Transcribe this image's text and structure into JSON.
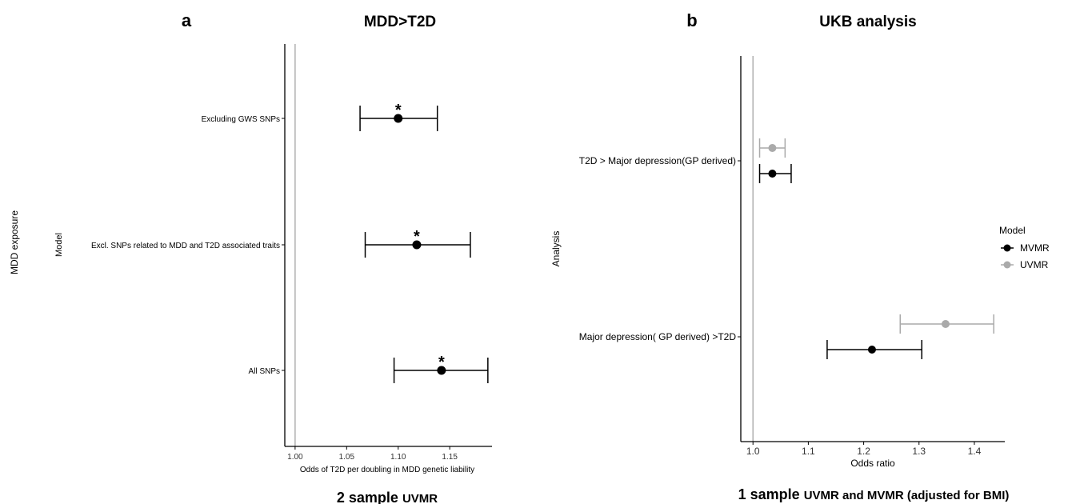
{
  "chart_data": [
    {
      "type": "forest",
      "panel_label": "a",
      "title": "MDD>T2D",
      "outer_ylabel": "MDD exposure",
      "ylabel": "Model",
      "xlabel": "Odds of T2D per doubling in MDD genetic liability",
      "caption_big": "2 sample",
      "caption_small": "UVMR",
      "xlim": [
        0.99,
        1.191
      ],
      "xticks": [
        1.0,
        1.05,
        1.1,
        1.15
      ],
      "xtick_labels": [
        "1.00",
        "1.05",
        "1.10",
        "1.15"
      ],
      "reference_line": 1.0,
      "grid": false,
      "rows": [
        {
          "label": "Excluding GWS SNPs",
          "estimate": 1.1,
          "lower": 1.063,
          "upper": 1.138,
          "annotation": "*"
        },
        {
          "label": "Excl. SNPs related to MDD and T2D associated traits",
          "estimate": 1.118,
          "lower": 1.068,
          "upper": 1.17,
          "annotation": "*"
        },
        {
          "label": "All SNPs",
          "estimate": 1.142,
          "lower": 1.096,
          "upper": 1.187,
          "annotation": "*"
        }
      ]
    },
    {
      "type": "forest",
      "panel_label": "b",
      "title": "UKB analysis",
      "ylabel": "Analysis",
      "xlabel": "Odds ratio",
      "caption_big": "1 sample",
      "caption_small": "UVMR and MVMR (adjusted for BMI)",
      "xlim": [
        0.978,
        1.455
      ],
      "xticks": [
        1.0,
        1.1,
        1.2,
        1.3,
        1.4
      ],
      "xtick_labels": [
        "1.0",
        "1.1",
        "1.2",
        "1.3",
        "1.4"
      ],
      "reference_line": 1.0,
      "grid": false,
      "legend": {
        "title": "Model",
        "position": "right",
        "entries": [
          {
            "name": "MVMR",
            "color": "#000000"
          },
          {
            "name": "UVMR",
            "color": "#aaaaaa"
          }
        ]
      },
      "rows": [
        {
          "label": "T2D > Major depression(GP derived)",
          "series": [
            {
              "name": "UVMR",
              "estimate": 1.035,
              "lower": 1.012,
              "upper": 1.058
            },
            {
              "name": "MVMR",
              "estimate": 1.035,
              "lower": 1.012,
              "upper": 1.069
            }
          ]
        },
        {
          "label": "Major depression( GP derived) >T2D",
          "series": [
            {
              "name": "UVMR",
              "estimate": 1.348,
              "lower": 1.266,
              "upper": 1.435
            },
            {
              "name": "MVMR",
              "estimate": 1.215,
              "lower": 1.134,
              "upper": 1.305
            }
          ]
        }
      ]
    }
  ]
}
